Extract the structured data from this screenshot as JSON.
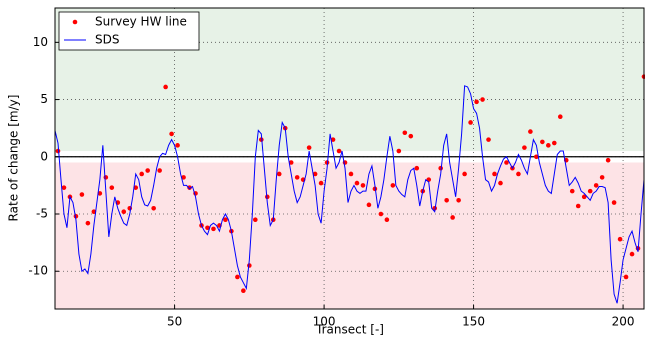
{
  "chart_data": {
    "type": "line",
    "xlabel": "Transect [-]",
    "ylabel": "Rate of change [m/y]",
    "xlim": [
      10,
      207
    ],
    "ylim": [
      -13.3,
      13
    ],
    "xticks": [
      50,
      100,
      150,
      200
    ],
    "yticks": [
      -10,
      -5,
      0,
      5,
      10
    ],
    "grid": true,
    "legend": "upper left",
    "reference_line": 0,
    "shaded_regions": [
      {
        "from": 0.5,
        "to": 13,
        "color": "#e7f2e7"
      },
      {
        "from": -13.3,
        "to": -0.5,
        "color": "#fde3e6"
      }
    ],
    "series": [
      {
        "name": "Survey HW line",
        "color": "#ff0000",
        "style": "markers",
        "x": [
          11,
          13,
          15,
          17,
          19,
          21,
          23,
          25,
          27,
          29,
          31,
          33,
          35,
          37,
          39,
          41,
          43,
          45,
          47,
          49,
          51,
          53,
          55,
          57,
          59,
          61,
          63,
          65,
          67,
          69,
          71,
          73,
          75,
          77,
          79,
          81,
          83,
          85,
          87,
          89,
          91,
          93,
          95,
          97,
          99,
          101,
          103,
          105,
          107,
          109,
          111,
          113,
          115,
          117,
          119,
          121,
          123,
          125,
          127,
          129,
          131,
          133,
          135,
          137,
          139,
          141,
          143,
          145,
          147,
          149,
          151,
          153,
          155,
          157,
          159,
          161,
          163,
          165,
          167,
          169,
          171,
          173,
          175,
          177,
          179,
          181,
          183,
          185,
          187,
          189,
          191,
          193,
          195,
          197,
          199,
          201,
          203,
          205,
          207
        ],
        "values": [
          0.5,
          -2.7,
          -3.5,
          -5.2,
          -3.3,
          -5.8,
          -4.8,
          -3.2,
          -1.8,
          -2.7,
          -4,
          -4.8,
          -4.5,
          -2.7,
          -1.5,
          -1.2,
          -4.5,
          -1.2,
          6.1,
          2,
          1,
          -1.8,
          -2.7,
          -3.2,
          -6,
          -6.2,
          -6.3,
          -6,
          -5.5,
          -6.5,
          -10.5,
          -11.7,
          -9.5,
          -5.5,
          1.5,
          -3.5,
          -5.5,
          -1.5,
          2.5,
          -0.5,
          -1.8,
          -2,
          0.8,
          -1.5,
          -2.3,
          -0.5,
          1.5,
          0.5,
          -0.5,
          -1.5,
          -2.3,
          -2.5,
          -4.2,
          -2.8,
          -5,
          -5.5,
          -2.5,
          0.5,
          2.1,
          1.8,
          -1,
          -3,
          -2,
          -4.5,
          -1,
          -3.8,
          -5.3,
          -3.8,
          -1.5,
          3,
          4.8,
          5,
          1.5,
          -1.5,
          -2.3,
          -0.5,
          -1,
          -1.5,
          0.8,
          2.2,
          0,
          1.3,
          1,
          1.2,
          3.5,
          -0.3,
          -3,
          -4.3,
          -3.5,
          -3,
          -2.5,
          -1.8,
          -0.3,
          -4,
          -7.2,
          -10.5,
          -8.5,
          -8,
          7
        ]
      },
      {
        "name": "SDS",
        "color": "#0000ff",
        "style": "line",
        "x": [
          10,
          11,
          12,
          13,
          14,
          15,
          16,
          17,
          18,
          19,
          20,
          21,
          22,
          23,
          24,
          25,
          26,
          27,
          28,
          29,
          30,
          31,
          32,
          33,
          34,
          35,
          36,
          37,
          38,
          39,
          40,
          41,
          42,
          43,
          44,
          45,
          46,
          47,
          48,
          49,
          50,
          51,
          52,
          53,
          54,
          55,
          56,
          57,
          58,
          59,
          60,
          61,
          62,
          63,
          64,
          65,
          66,
          67,
          68,
          69,
          70,
          71,
          72,
          73,
          74,
          75,
          76,
          77,
          78,
          79,
          80,
          81,
          82,
          83,
          84,
          85,
          86,
          87,
          88,
          89,
          90,
          91,
          92,
          93,
          94,
          95,
          96,
          97,
          98,
          99,
          100,
          101,
          102,
          103,
          104,
          105,
          106,
          107,
          108,
          109,
          110,
          111,
          112,
          113,
          114,
          115,
          116,
          117,
          118,
          119,
          120,
          121,
          122,
          123,
          124,
          125,
          126,
          127,
          128,
          129,
          130,
          131,
          132,
          133,
          134,
          135,
          136,
          137,
          138,
          139,
          140,
          141,
          142,
          143,
          144,
          145,
          146,
          147,
          148,
          149,
          150,
          151,
          152,
          153,
          154,
          155,
          156,
          157,
          158,
          159,
          160,
          161,
          162,
          163,
          164,
          165,
          166,
          167,
          168,
          169,
          170,
          171,
          172,
          173,
          174,
          175,
          176,
          177,
          178,
          179,
          180,
          181,
          182,
          183,
          184,
          185,
          186,
          187,
          188,
          189,
          190,
          191,
          192,
          193,
          194,
          195,
          196,
          197,
          198,
          199,
          200,
          201,
          202,
          203,
          204,
          205,
          206,
          207
        ],
        "values": [
          2.3,
          1.2,
          -2,
          -5,
          -6.2,
          -3.5,
          -4,
          -5.5,
          -8.5,
          -10,
          -9.8,
          -10.2,
          -8.5,
          -6,
          -4,
          -2,
          1,
          -3,
          -7,
          -5,
          -3.5,
          -4.5,
          -5.2,
          -5.8,
          -6,
          -5,
          -3.5,
          -1.5,
          -2,
          -3.5,
          -4.2,
          -4.3,
          -3.8,
          -2.5,
          -1,
          0,
          0.3,
          0.2,
          1,
          1.5,
          1,
          0,
          -1.5,
          -2.5,
          -2.5,
          -2.8,
          -2.6,
          -3.5,
          -5,
          -6,
          -6.5,
          -6.8,
          -6,
          -5.8,
          -6,
          -6.5,
          -5.5,
          -5,
          -5.5,
          -6.5,
          -8,
          -9.5,
          -10.5,
          -11,
          -11.5,
          -9,
          -5,
          0,
          2.3,
          2,
          -1,
          -4,
          -6,
          -5.5,
          -2,
          1,
          3,
          2.5,
          0,
          -1.5,
          -3,
          -4,
          -3.5,
          -2.5,
          -1.5,
          0.5,
          -1,
          -2.5,
          -5,
          -5.8,
          -3,
          -1,
          2,
          0.5,
          -1,
          -0.5,
          0.5,
          -1,
          -4,
          -3,
          -2.5,
          -3,
          -3.2,
          -3,
          -3,
          -1.5,
          -0.8,
          -2.5,
          -4.5,
          -3.5,
          -2,
          0,
          1.8,
          0.5,
          -2.5,
          -3,
          -3.3,
          -3.5,
          -2,
          -1.2,
          -1,
          -2.5,
          -4.3,
          -3,
          -2,
          -2.2,
          -4.5,
          -4.8,
          -3,
          -1.5,
          1,
          2,
          -0.5,
          -2,
          -3.5,
          -1,
          2,
          6.2,
          6.1,
          5.5,
          4.2,
          3.8,
          2.5,
          0,
          -2,
          -2.2,
          -3,
          -2.5,
          -1.5,
          -0.8,
          -0.2,
          0,
          -0.5,
          -1,
          -0.5,
          0.2,
          -0.3,
          -1,
          -1.5,
          0,
          1.5,
          1,
          -0.5,
          -1.5,
          -2.5,
          -3,
          -3.2,
          -1.5,
          0.2,
          0.5,
          0.5,
          -1,
          -2.5,
          -2.2,
          -1.8,
          -2.3,
          -3,
          -3.2,
          -3.5,
          -3.8,
          -3.2,
          -3,
          -2.6,
          -2.6,
          -2.7,
          -4,
          -9,
          -12,
          -12.8,
          -11,
          -9,
          -8,
          -7,
          -6.5,
          -7.5,
          -8.3,
          -5,
          -2
        ]
      }
    ]
  }
}
